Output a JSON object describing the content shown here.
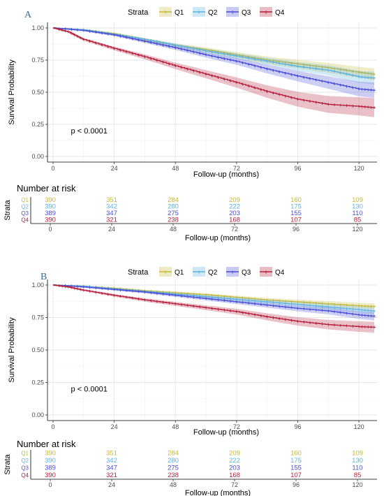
{
  "colors": {
    "Q1": "#c6b93a",
    "Q2": "#5fb3e0",
    "Q3": "#4a4fd6",
    "Q4": "#b5203d"
  },
  "chart_data": [
    {
      "type": "line",
      "panel": "A",
      "ylabel": "Survival Probability",
      "xlabel": "Follow-up (months)",
      "xticks": [
        "0",
        "24",
        "48",
        "72",
        "96",
        "120"
      ],
      "yticks": [
        "0.00",
        "0.25",
        "0.50",
        "0.75",
        "1.00"
      ],
      "xlim": [
        0,
        126
      ],
      "ylim": [
        0,
        1
      ],
      "legend_title": "Strata",
      "legend_position": "top",
      "pvalue": "p < 0.0001",
      "grid": true,
      "series": [
        {
          "name": "Q1",
          "x": [
            0,
            12,
            24,
            36,
            48,
            60,
            72,
            84,
            96,
            108,
            120,
            126
          ],
          "y": [
            1.0,
            0.985,
            0.955,
            0.91,
            0.865,
            0.83,
            0.79,
            0.75,
            0.72,
            0.69,
            0.655,
            0.64
          ]
        },
        {
          "name": "Q2",
          "x": [
            0,
            12,
            24,
            36,
            48,
            60,
            72,
            84,
            96,
            108,
            120,
            126
          ],
          "y": [
            1.0,
            0.985,
            0.95,
            0.91,
            0.865,
            0.82,
            0.78,
            0.74,
            0.7,
            0.67,
            0.62,
            0.61
          ]
        },
        {
          "name": "Q3",
          "x": [
            0,
            12,
            24,
            36,
            48,
            60,
            72,
            84,
            96,
            108,
            120,
            126
          ],
          "y": [
            1.0,
            0.98,
            0.945,
            0.895,
            0.845,
            0.79,
            0.74,
            0.68,
            0.625,
            0.575,
            0.525,
            0.515
          ]
        },
        {
          "name": "Q4",
          "x": [
            0,
            6,
            12,
            24,
            36,
            48,
            60,
            72,
            84,
            96,
            108,
            120,
            126
          ],
          "y": [
            1.0,
            0.97,
            0.91,
            0.84,
            0.775,
            0.705,
            0.64,
            0.575,
            0.505,
            0.445,
            0.405,
            0.39,
            0.38
          ]
        }
      ],
      "risk_table": {
        "title": "Number at risk",
        "ylabel": "Strata",
        "xlabel": "Follow-up (months)",
        "xticks": [
          "0",
          "24",
          "48",
          "72",
          "96",
          "120"
        ],
        "rows": [
          {
            "name": "Q1",
            "values": [
              "390",
              "351",
              "284",
              "209",
              "160",
              "109"
            ]
          },
          {
            "name": "Q2",
            "values": [
              "390",
              "342",
              "280",
              "222",
              "175",
              "130"
            ]
          },
          {
            "name": "Q3",
            "values": [
              "389",
              "347",
              "275",
              "203",
              "155",
              "110"
            ]
          },
          {
            "name": "Q4",
            "values": [
              "390",
              "321",
              "238",
              "168",
              "107",
              "85"
            ]
          }
        ]
      }
    },
    {
      "type": "line",
      "panel": "B",
      "ylabel": "Survival Probability",
      "xlabel": "Follow-up (months)",
      "xticks": [
        "0",
        "24",
        "48",
        "72",
        "96",
        "120"
      ],
      "yticks": [
        "0.00",
        "0.25",
        "0.50",
        "0.75",
        "1.00"
      ],
      "xlim": [
        0,
        126
      ],
      "ylim": [
        0,
        1
      ],
      "legend_title": "Strata",
      "legend_position": "top",
      "pvalue": "p < 0.0001",
      "grid": true,
      "series": [
        {
          "name": "Q1",
          "x": [
            0,
            12,
            24,
            36,
            48,
            60,
            72,
            84,
            96,
            108,
            120,
            126
          ],
          "y": [
            1.0,
            0.99,
            0.975,
            0.955,
            0.94,
            0.925,
            0.905,
            0.885,
            0.87,
            0.855,
            0.84,
            0.835
          ]
        },
        {
          "name": "Q2",
          "x": [
            0,
            12,
            24,
            36,
            48,
            60,
            72,
            84,
            96,
            108,
            120,
            126
          ],
          "y": [
            1.0,
            0.99,
            0.97,
            0.95,
            0.93,
            0.91,
            0.89,
            0.87,
            0.85,
            0.83,
            0.81,
            0.8
          ]
        },
        {
          "name": "Q3",
          "x": [
            0,
            12,
            24,
            36,
            48,
            60,
            72,
            84,
            96,
            108,
            120,
            126
          ],
          "y": [
            1.0,
            0.985,
            0.965,
            0.945,
            0.92,
            0.895,
            0.87,
            0.845,
            0.82,
            0.8,
            0.77,
            0.76
          ]
        },
        {
          "name": "Q4",
          "x": [
            0,
            6,
            12,
            24,
            36,
            48,
            60,
            72,
            84,
            96,
            108,
            120,
            126
          ],
          "y": [
            1.0,
            0.985,
            0.96,
            0.92,
            0.885,
            0.855,
            0.825,
            0.795,
            0.755,
            0.72,
            0.695,
            0.68,
            0.675
          ]
        }
      ],
      "risk_table": {
        "title": "Number at risk",
        "ylabel": "Strata",
        "xlabel": "Follow-up (months)",
        "xticks": [
          "0",
          "24",
          "48",
          "72",
          "96",
          "120"
        ],
        "rows": [
          {
            "name": "Q1",
            "values": [
              "390",
              "351",
              "284",
              "209",
              "160",
              "109"
            ]
          },
          {
            "name": "Q2",
            "values": [
              "390",
              "342",
              "280",
              "222",
              "175",
              "130"
            ]
          },
          {
            "name": "Q3",
            "values": [
              "389",
              "347",
              "275",
              "203",
              "155",
              "110"
            ]
          },
          {
            "name": "Q4",
            "values": [
              "390",
              "321",
              "238",
              "168",
              "107",
              "85"
            ]
          }
        ]
      }
    }
  ]
}
